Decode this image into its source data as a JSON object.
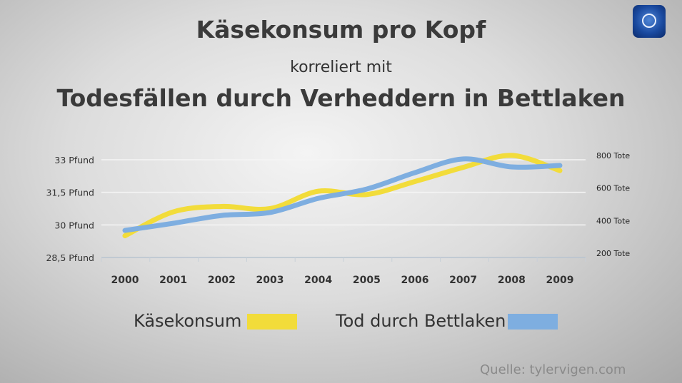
{
  "header": {
    "title": "Käsekonsum pro Kopf",
    "subtitle": "korreliert mit",
    "title2": "Todesfällen durch Verheddern in Bettlaken"
  },
  "logo": "tagesschau-logo",
  "source": "Quelle: tylervigen.com",
  "chart_data": {
    "type": "line",
    "title": "Käsekonsum pro Kopf korreliert mit Todesfällen durch Verheddern in Bettlaken",
    "x": [
      "2000",
      "2001",
      "2002",
      "2003",
      "2004",
      "2005",
      "2006",
      "2007",
      "2008",
      "2009"
    ],
    "y_left": {
      "ticks": [
        33,
        31.5,
        30,
        28.5
      ],
      "labels": [
        "33 Pfund",
        "31,5 Pfund",
        "30 Pfund",
        "28,5 Pfund"
      ],
      "range": [
        28.5,
        33
      ]
    },
    "y_right": {
      "ticks": [
        800,
        600,
        400,
        200
      ],
      "labels": [
        "800 Tote",
        "600 Tote",
        "400 Tote",
        "200 Tote"
      ],
      "range": [
        200,
        800
      ]
    },
    "grid": true,
    "legend_placement": "bottom",
    "series": [
      {
        "name": "Käsekonsum",
        "axis": "left",
        "color": "#f2dc3a",
        "values": [
          29.5,
          30.6,
          30.85,
          30.75,
          31.55,
          31.4,
          32.0,
          32.65,
          33.2,
          32.5
        ]
      },
      {
        "name": "Tod durch Bettlaken",
        "axis": "right",
        "color": "#7eaee0",
        "values": [
          366,
          410,
          458,
          476,
          563,
          620,
          721,
          805,
          756,
          765
        ]
      }
    ]
  }
}
